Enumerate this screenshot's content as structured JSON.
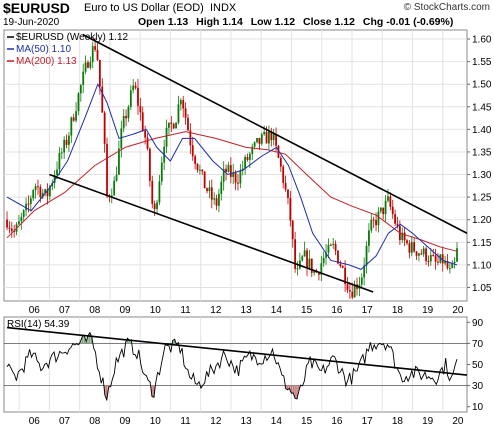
{
  "header": {
    "symbol": "$EURUSD",
    "name": "Euro to US Dollar (EOD)",
    "exchange": "INDX",
    "watermark": "© StockCharts.com",
    "date": "19-Jun-2020",
    "open": "Open 1.13",
    "high": "High 1.14",
    "low": "Low 1.12",
    "close": "Close 1.12",
    "chg": "Chg -0.01 (-0.69%)"
  },
  "colors": {
    "up": "#0b7a0b",
    "down": "#c00000",
    "ma50": "#1f2fa8",
    "ma200": "#c0202a",
    "rsi": "#000000"
  },
  "chart_data": [
    {
      "type": "candlestick",
      "legend": [
        {
          "label": "$EURUSD (Weekly) 1.12",
          "color": "#000000"
        },
        {
          "label": "MA(50) 1.10",
          "color": "#1f2fa8"
        },
        {
          "label": "MA(200) 1.13",
          "color": "#c0202a"
        }
      ],
      "x_ticks": [
        "06",
        "07",
        "08",
        "09",
        "10",
        "11",
        "12",
        "13",
        "14",
        "15",
        "16",
        "17",
        "18",
        "19",
        "20"
      ],
      "y_ticks": [
        1.05,
        1.1,
        1.15,
        1.2,
        1.25,
        1.3,
        1.35,
        1.4,
        1.45,
        1.5,
        1.55,
        1.6
      ],
      "y_range": [
        1.02,
        1.62
      ],
      "x_range": [
        2005.5,
        2020.8
      ],
      "grid": true,
      "price_path": [
        [
          2005.6,
          1.2
        ],
        [
          2005.85,
          1.17
        ],
        [
          2006.3,
          1.23
        ],
        [
          2006.5,
          1.28
        ],
        [
          2006.9,
          1.25
        ],
        [
          2007.3,
          1.33
        ],
        [
          2007.6,
          1.38
        ],
        [
          2007.9,
          1.46
        ],
        [
          2008.3,
          1.56
        ],
        [
          2008.55,
          1.59
        ],
        [
          2008.8,
          1.39
        ],
        [
          2008.9,
          1.25
        ],
        [
          2009.15,
          1.28
        ],
        [
          2009.4,
          1.4
        ],
        [
          2009.8,
          1.5
        ],
        [
          2010.2,
          1.37
        ],
        [
          2010.45,
          1.2
        ],
        [
          2010.8,
          1.38
        ],
        [
          2011.2,
          1.43
        ],
        [
          2011.35,
          1.48
        ],
        [
          2011.7,
          1.36
        ],
        [
          2012.1,
          1.28
        ],
        [
          2012.5,
          1.23
        ],
        [
          2012.8,
          1.31
        ],
        [
          2013.2,
          1.29
        ],
        [
          2013.5,
          1.33
        ],
        [
          2013.9,
          1.37
        ],
        [
          2014.35,
          1.39
        ],
        [
          2014.7,
          1.3
        ],
        [
          2014.95,
          1.21
        ],
        [
          2015.15,
          1.07
        ],
        [
          2015.4,
          1.12
        ],
        [
          2015.8,
          1.08
        ],
        [
          2016.1,
          1.12
        ],
        [
          2016.4,
          1.14
        ],
        [
          2016.8,
          1.07
        ],
        [
          2016.95,
          1.04
        ],
        [
          2017.3,
          1.07
        ],
        [
          2017.6,
          1.18
        ],
        [
          2018.0,
          1.22
        ],
        [
          2018.2,
          1.24
        ],
        [
          2018.6,
          1.16
        ],
        [
          2018.9,
          1.14
        ],
        [
          2019.2,
          1.13
        ],
        [
          2019.5,
          1.12
        ],
        [
          2019.8,
          1.1
        ],
        [
          2020.0,
          1.11
        ],
        [
          2020.25,
          1.08
        ],
        [
          2020.4,
          1.1
        ],
        [
          2020.47,
          1.13
        ]
      ],
      "ma50_path": [
        [
          2005.6,
          1.25
        ],
        [
          2006.4,
          1.22
        ],
        [
          2007.0,
          1.27
        ],
        [
          2007.6,
          1.33
        ],
        [
          2008.2,
          1.43
        ],
        [
          2008.6,
          1.5
        ],
        [
          2008.9,
          1.46
        ],
        [
          2009.3,
          1.38
        ],
        [
          2009.8,
          1.39
        ],
        [
          2010.2,
          1.4
        ],
        [
          2010.55,
          1.36
        ],
        [
          2011.0,
          1.33
        ],
        [
          2011.4,
          1.38
        ],
        [
          2011.8,
          1.38
        ],
        [
          2012.4,
          1.33
        ],
        [
          2012.9,
          1.3
        ],
        [
          2013.4,
          1.31
        ],
        [
          2014.0,
          1.34
        ],
        [
          2014.5,
          1.36
        ],
        [
          2014.9,
          1.32
        ],
        [
          2015.3,
          1.25
        ],
        [
          2015.7,
          1.17
        ],
        [
          2016.3,
          1.11
        ],
        [
          2016.9,
          1.1
        ],
        [
          2017.3,
          1.09
        ],
        [
          2017.8,
          1.12
        ],
        [
          2018.2,
          1.17
        ],
        [
          2018.6,
          1.19
        ],
        [
          2019.0,
          1.17
        ],
        [
          2019.5,
          1.14
        ],
        [
          2020.0,
          1.11
        ],
        [
          2020.47,
          1.1
        ]
      ],
      "ma200_path": [
        [
          2005.6,
          1.16
        ],
        [
          2006.5,
          1.22
        ],
        [
          2007.5,
          1.26
        ],
        [
          2008.5,
          1.32
        ],
        [
          2009.5,
          1.36
        ],
        [
          2010.5,
          1.38
        ],
        [
          2011.5,
          1.395
        ],
        [
          2012.5,
          1.38
        ],
        [
          2013.5,
          1.36
        ],
        [
          2014.2,
          1.355
        ],
        [
          2014.8,
          1.345
        ],
        [
          2015.5,
          1.3
        ],
        [
          2016.3,
          1.25
        ],
        [
          2017.0,
          1.23
        ],
        [
          2017.8,
          1.21
        ],
        [
          2018.6,
          1.17
        ],
        [
          2019.3,
          1.155
        ],
        [
          2019.9,
          1.14
        ],
        [
          2020.47,
          1.13
        ]
      ],
      "trendlines": [
        {
          "from": [
            2008.1,
            1.61
          ],
          "to": [
            2020.8,
            1.17
          ]
        },
        {
          "from": [
            2007.0,
            1.3
          ],
          "to": [
            2017.7,
            1.04
          ]
        }
      ]
    },
    {
      "type": "line",
      "legend": [
        {
          "label": "RSI(14) 54.39",
          "color": "#000000"
        }
      ],
      "x_ticks": [
        "06",
        "07",
        "08",
        "09",
        "10",
        "11",
        "12",
        "13",
        "14",
        "15",
        "16",
        "17",
        "18",
        "19",
        "20"
      ],
      "y_ticks": [
        10,
        30,
        50,
        70,
        90
      ],
      "y_range": [
        5,
        95
      ],
      "reference_lines": [
        30,
        70
      ],
      "rsi_path": [
        [
          2005.6,
          45
        ],
        [
          2005.9,
          38
        ],
        [
          2006.4,
          60
        ],
        [
          2006.7,
          48
        ],
        [
          2007.2,
          58
        ],
        [
          2007.6,
          66
        ],
        [
          2008.0,
          70
        ],
        [
          2008.4,
          74
        ],
        [
          2008.7,
          40
        ],
        [
          2008.9,
          20
        ],
        [
          2009.2,
          52
        ],
        [
          2009.6,
          70
        ],
        [
          2009.9,
          62
        ],
        [
          2010.2,
          35
        ],
        [
          2010.45,
          24
        ],
        [
          2010.8,
          65
        ],
        [
          2011.3,
          68
        ],
        [
          2011.6,
          40
        ],
        [
          2011.9,
          30
        ],
        [
          2012.4,
          45
        ],
        [
          2012.8,
          60
        ],
        [
          2013.2,
          44
        ],
        [
          2013.6,
          58
        ],
        [
          2014.0,
          56
        ],
        [
          2014.4,
          63
        ],
        [
          2014.7,
          36
        ],
        [
          2015.0,
          24
        ],
        [
          2015.2,
          16
        ],
        [
          2015.6,
          52
        ],
        [
          2016.0,
          42
        ],
        [
          2016.4,
          56
        ],
        [
          2016.85,
          34
        ],
        [
          2017.2,
          44
        ],
        [
          2017.6,
          68
        ],
        [
          2017.9,
          72
        ],
        [
          2018.2,
          70
        ],
        [
          2018.6,
          38
        ],
        [
          2019.0,
          42
        ],
        [
          2019.4,
          40
        ],
        [
          2019.8,
          38
        ],
        [
          2020.1,
          50
        ],
        [
          2020.3,
          34
        ],
        [
          2020.47,
          54
        ]
      ],
      "trendline": {
        "from": [
          2005.6,
          85
        ],
        "to": [
          2020.8,
          40
        ]
      }
    }
  ]
}
